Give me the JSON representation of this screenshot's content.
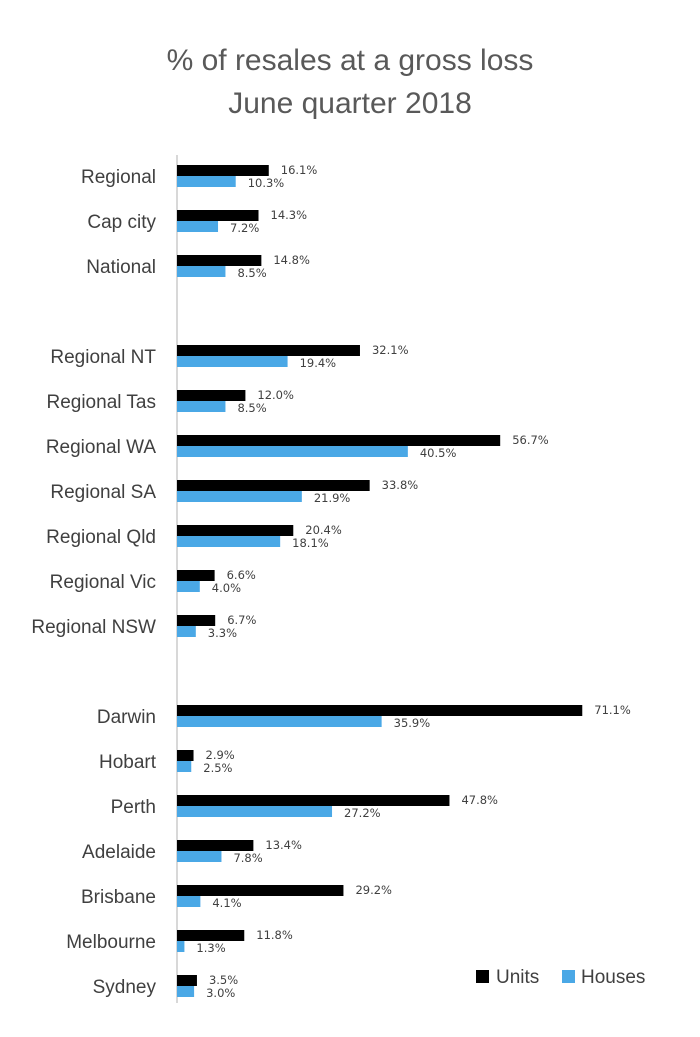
{
  "chart_data": {
    "type": "bar",
    "orientation": "horizontal",
    "title": "% of resales at a gross loss",
    "subtitle": "June quarter 2018",
    "categories": [
      "Regional",
      "Cap city",
      "National",
      "Regional NT",
      "Regional Tas",
      "Regional WA",
      "Regional SA",
      "Regional Qld",
      "Regional Vic",
      "Regional NSW",
      "Darwin",
      "Hobart",
      "Perth",
      "Adelaide",
      "Brisbane",
      "Melbourne",
      "Sydney"
    ],
    "series": [
      {
        "name": "Units",
        "color": "#000000",
        "values": [
          16.1,
          14.3,
          14.8,
          32.1,
          12.0,
          56.7,
          33.8,
          20.4,
          6.6,
          6.7,
          71.1,
          2.9,
          47.8,
          13.4,
          29.2,
          11.8,
          3.5
        ],
        "labels": [
          "16.1%",
          "14.3%",
          "14.8%",
          "32.1%",
          "12.0%",
          "56.7%",
          "33.8%",
          "20.4%",
          "6.6%",
          "6.7%",
          "71.1%",
          "2.9%",
          "47.8%",
          "13.4%",
          "29.2%",
          "11.8%",
          "3.5%"
        ]
      },
      {
        "name": "Houses",
        "color": "#4aa8e6",
        "values": [
          10.3,
          7.2,
          8.5,
          19.4,
          8.5,
          40.5,
          21.9,
          18.1,
          4.0,
          3.3,
          35.9,
          2.5,
          27.2,
          7.8,
          4.1,
          1.3,
          3.0
        ],
        "labels": [
          "10.3%",
          "7.2%",
          "8.5%",
          "19.4%",
          "8.5%",
          "40.5%",
          "21.9%",
          "18.1%",
          "4.0%",
          "3.3%",
          "35.9%",
          "2.5%",
          "27.2%",
          "7.8%",
          "4.1%",
          "1.3%",
          "3.0%"
        ]
      }
    ],
    "groups": [
      3,
      7,
      7
    ],
    "xlim": [
      0,
      75
    ],
    "grid": false,
    "legend_position": "bottom-right"
  }
}
